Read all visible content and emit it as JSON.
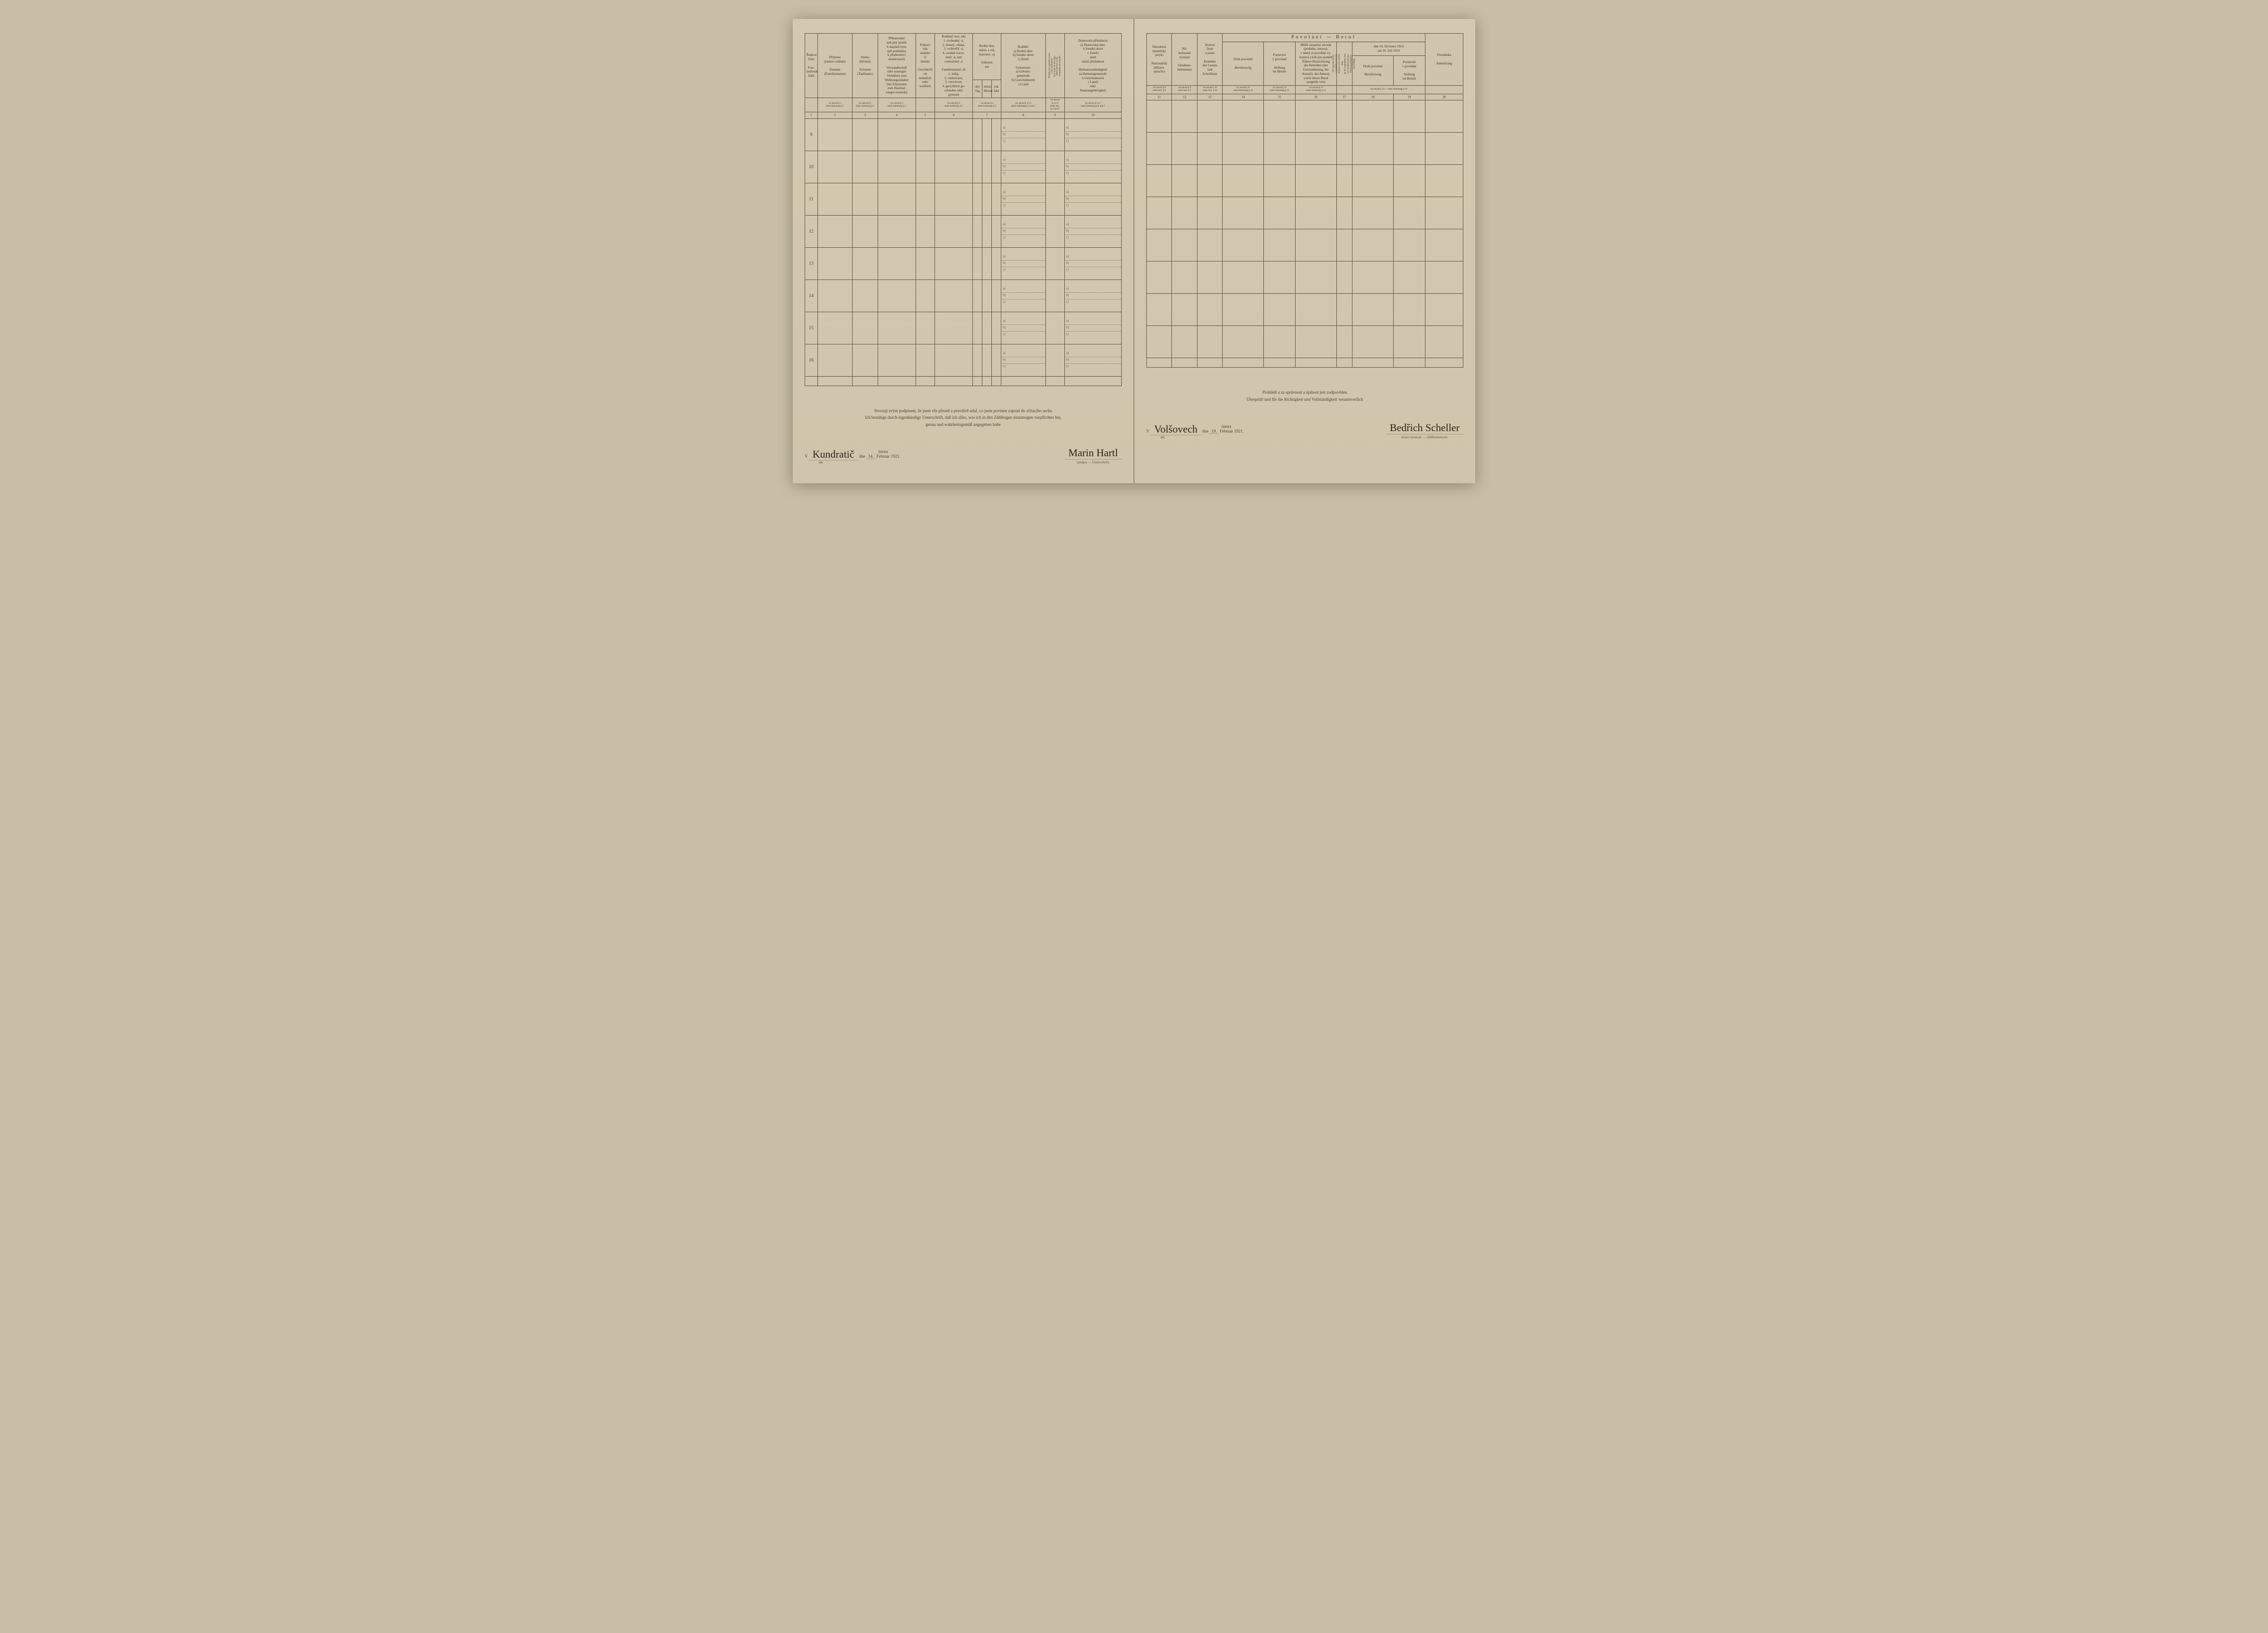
{
  "left": {
    "headers": {
      "c1": "Řadové\nčíslo\n\nFort-\nlaufende\nZahl",
      "c2": "Příjmení\n(jméno rodinné)\n\nZuname\n(Familienname)",
      "c3": "Jméno\n(křestní)\n\nVorname\n(Taufname)",
      "c4": "Příbuzenský\nneb jiný poměr\nk majiteli bytu\n(při podnájmu\nk přednostovi\ndomácnosti)\n\nVerwandtschaft\noder sonstiges\nVerhältnis zum\nWohnungsinhaber\n(bei Aftermiete\nzum Haushal-\ntungsvorstande)",
      "c5": "Pohlaví\nzda\nmužské\nči\nženské\n\nGeschlecht\nob\nmännlich\noder\nweiblich",
      "c6": "Rodinný stav, zda\n1. svobodný -á,\n2. ženatý, vdaná,\n3. ovdovělý -á,\n4. soudně rozve-\ndený -á, neb\nrozloučený -á\n\nFamilienstand, ob\n1. ledig,\n2. verheiratet,\n3. verwitwet,\n4. gerichtlich ge-\nschieden oder\ngetrennt",
      "c7": "Rodný den,\nměsíc a rok\n(narozen -a)\n\nGeboren\nam",
      "c7a": "den\nTag",
      "c7b": "měsíc\nMonat",
      "c7c": "rok\nJahr",
      "c8": "Rodiště:\na) Rodná obec\nb) Soudní okres\nc) Země\n\nGeburtsort:\na) Geburts-\ngemeinde\nb) Gerichtsbezirk\nc) Land",
      "c9a": "Od kdy jest zapsaná osoba\nv obci přítomna?",
      "c9b": "Seit wann ist die ange-\nführte Person in der\nGemeinde anwesend?",
      "c10": "Domovská příslušnost\n(a Domovská obec\nb Soudní okres\nc Země)\naneb\nstátní příslušnost\n\nHeimatszuständigkeit\n(a Heimatsgemeinde\nb Gerichtsbezirk\nc Land)\noder\nStaatsangehörigkeit"
    },
    "footnotes": {
      "f2": "viz návod § 1\nsiehe Anleitung § 1",
      "f3": "viz návod § 1\nsiehe Anleitung § 1",
      "f4": "viz návod § 2\nsiehe Anleitung § 2",
      "f6": "viz návod § 3\nsiehe Anleitung § 3",
      "f7": "viz návod § 4\nsiehe Anleitung § 4",
      "f8": "viz návod § 4 a 5\nsiehe Anleitung § 4 und 5",
      "f9": "viz návod\n§ 4 a 6\nsiehe Anl.\n§ 4 und 6",
      "f10": "viz návod § 4 a 7\nsiehe Anleitung § 4 und 7"
    },
    "col_numbers": [
      "1",
      "2",
      "3",
      "4",
      "5",
      "6",
      "7",
      "8",
      "9",
      "10"
    ],
    "rows": [
      "9",
      "10",
      "11",
      "12",
      "13",
      "14",
      "15",
      "16"
    ],
    "sub_labels": [
      "a)",
      "b)",
      "c)"
    ],
    "attestation": {
      "cz": "Stvrzuji svým podpisem, že jsem vše přesně a pravdivě udal, co jsem povinen zapsati do sčítacího archu",
      "de1": "Ich bestätige durch eigenhändige Unterschrift, daß ich alles, was ich in den Zählbogen einzutragen verpflichtet bin,",
      "de2": "genau und wahrheitsgemäß angegeben habe"
    },
    "signature": {
      "place_prefix": "V",
      "place": "Kundratič",
      "dne": "dne",
      "am": "am",
      "day": "14.",
      "month_cz": "února",
      "month_de": "Februar",
      "year": "1921.",
      "name": "Marin Hartl",
      "caption": "(podpis — Unterschrift)"
    }
  },
  "right": {
    "headers": {
      "c11": "Národnost\n(mateřský\njazyk)\n\nNationalität\n(Mutter-\nsprache)",
      "c12": "Ná-\nboženské\nvyznání\n\nGlaubens-\nbekenntnis",
      "c13": "Znalost\nčtení\na psaní\n\nKenntnis\ndes Lesens\nund\nSchreibens",
      "beruf": "Povolání — Beruf",
      "c14": "Druh povolání\n\nBerufszweig",
      "c15": "Postavení\nv povolání\n\nStellung\nim Berufe",
      "c16": "Bližší označení závodu\n(podniku, ústavu),\nv němž se povolání vy-\nkonává a kde jest podnik\nNähere Bezeichnung\ndes Betriebes (der\nUnternehmung, der\nAnstalt), des Amtes),\nworin dieser Beruf\nausgeübt wird",
      "c17a": "Jeli zapsaná osoba\nv podniku (závodě)\nmajitele bytu zaměst-\nnána",
      "c17b": "Ist die angeführte Per-\nson im Betriebe des\nWohnungsinhabers\nbeschäftigt",
      "c18": "Druh povolání\n\nBerufszweig",
      "c19": "Postavení\nv povolání\n\nStellung\nim Berufe",
      "c1819sup": "dne 16. července 1914\nam 16. Juli 1914",
      "c20": "Poznámka\n\nAnmerkung"
    },
    "footnotes": {
      "f11": "viz návod § 8\nsiehe Anl. § 8",
      "f12": "viz návod § 9\nsiehe Anl. § 9",
      "f13": "viz návod § 10\nsiehe Anl. § 10",
      "f14": "viz návod § 11\nsiehe Anleitung § 11",
      "f15": "viz návod § 12\nsiehe Anleitung § 12",
      "f16": "viz návod § 13\nsiehe Anleitung § 13",
      "f1819": "viz návod § 14 — siehe Anleitung § 14"
    },
    "col_numbers": [
      "11",
      "12",
      "13",
      "14",
      "15",
      "16",
      "17",
      "18",
      "19",
      "20"
    ],
    "attestation": {
      "cz": "Prohlédl a za správnost a úplnost jest zodpověden",
      "de": "Überprüft und für die Richtigkeit und Vollständigkeit verantwortlich"
    },
    "signature": {
      "place_prefix": "V",
      "place": "Volšovech",
      "dne": "dne",
      "am": "am",
      "day": "19.",
      "month_cz": "února",
      "month_de": "Februar",
      "year": "1921.",
      "name": "Bedřich Scheller",
      "caption": "sčítací komisař. — Zählkommissär."
    }
  }
}
